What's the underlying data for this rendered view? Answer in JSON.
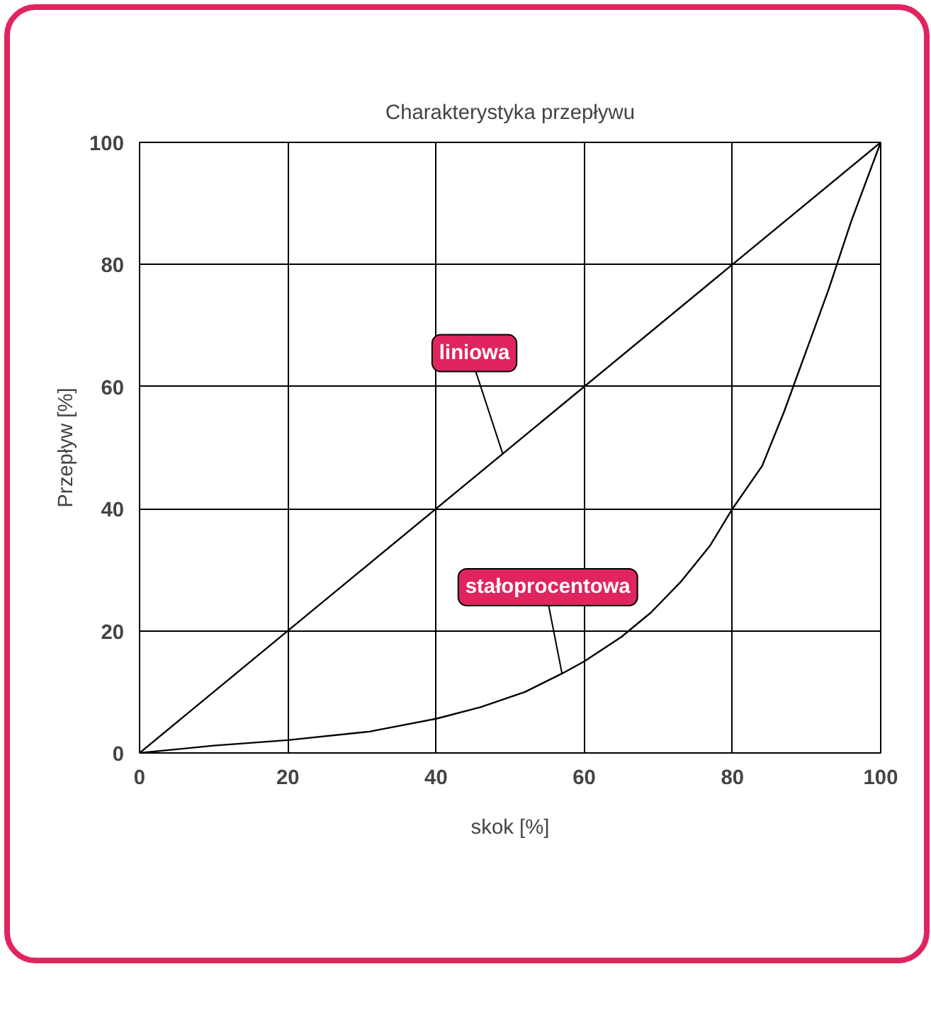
{
  "chart_data": {
    "type": "line",
    "title": "Charakterystyka przepływu",
    "xlabel": "skok [%]",
    "ylabel": "Przepływ [%]",
    "xlim": [
      0,
      100
    ],
    "ylim": [
      0,
      100
    ],
    "xticks": [
      0,
      20,
      40,
      60,
      80,
      100
    ],
    "yticks": [
      0,
      20,
      40,
      60,
      80,
      100
    ],
    "grid": true,
    "series": [
      {
        "color": "#000000",
        "x": [
          0,
          100
        ],
        "values": [
          0,
          100
        ]
      },
      {
        "color": "#000000",
        "x": [
          0,
          10,
          20,
          31,
          40,
          46,
          52,
          57,
          60,
          65,
          69,
          73,
          77,
          80,
          84,
          87,
          90,
          93,
          96,
          100
        ],
        "values": [
          0,
          1.2,
          2.1,
          3.5,
          5.6,
          7.5,
          10,
          13,
          15,
          19,
          23,
          28,
          34,
          40,
          47,
          56,
          66,
          76,
          87,
          100
        ]
      }
    ],
    "annotations": [
      {
        "text": "liniowa",
        "x": 49,
        "y": 49
      },
      {
        "text": "stałoprocentowa",
        "x": 57,
        "y": 13
      }
    ]
  }
}
